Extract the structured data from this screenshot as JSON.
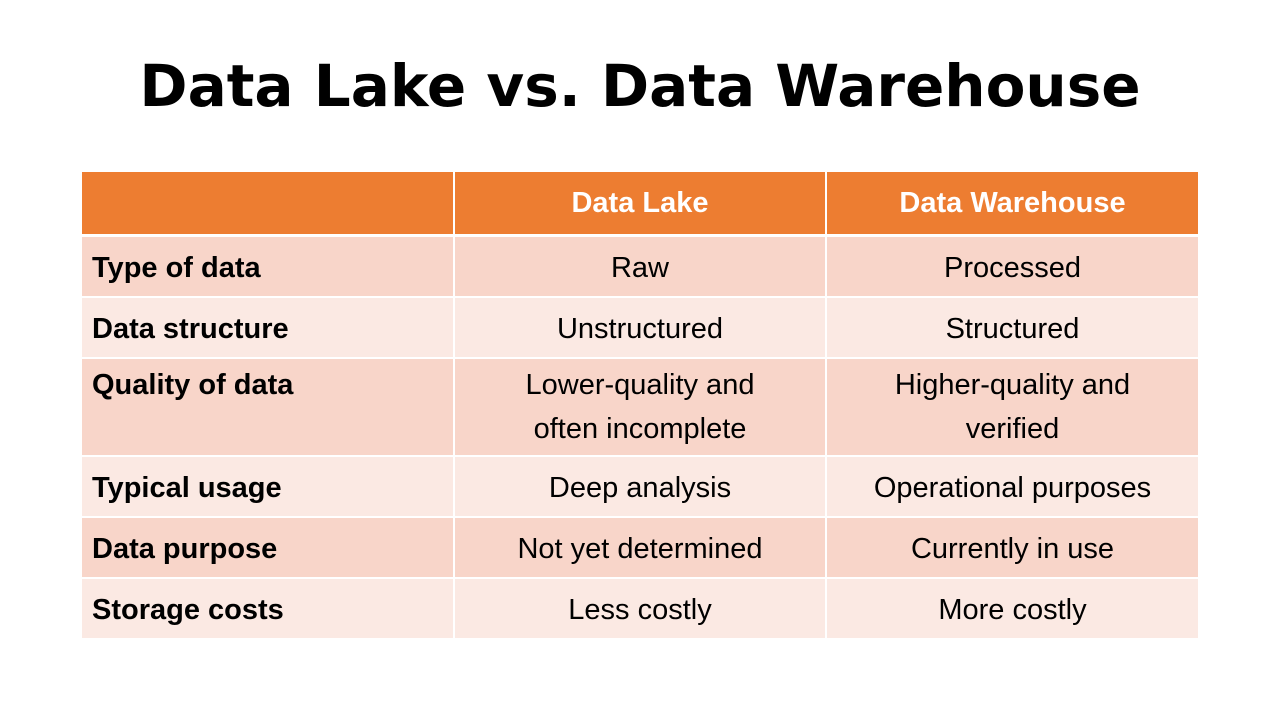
{
  "title": "Data Lake vs. Data Warehouse",
  "table": {
    "headers": [
      "",
      "Data Lake",
      "Data Warehouse"
    ],
    "rows": [
      [
        "Type of data",
        "Raw",
        "Processed"
      ],
      [
        "Data structure",
        "Unstructured",
        "Structured"
      ],
      [
        "Quality of data",
        "Lower-quality and\noften incomplete",
        "Higher-quality and\nverified"
      ],
      [
        "Typical usage",
        "Deep analysis",
        "Operational purposes"
      ],
      [
        "Data purpose",
        "Not yet determined",
        "Currently in use"
      ],
      [
        "Storage costs",
        "Less costly",
        "More costly"
      ]
    ],
    "colors": {
      "header_bg": "#ed7d31",
      "header_text": "#ffffff",
      "row_dark": "#f8d5c9",
      "row_light": "#fbe9e3"
    }
  }
}
